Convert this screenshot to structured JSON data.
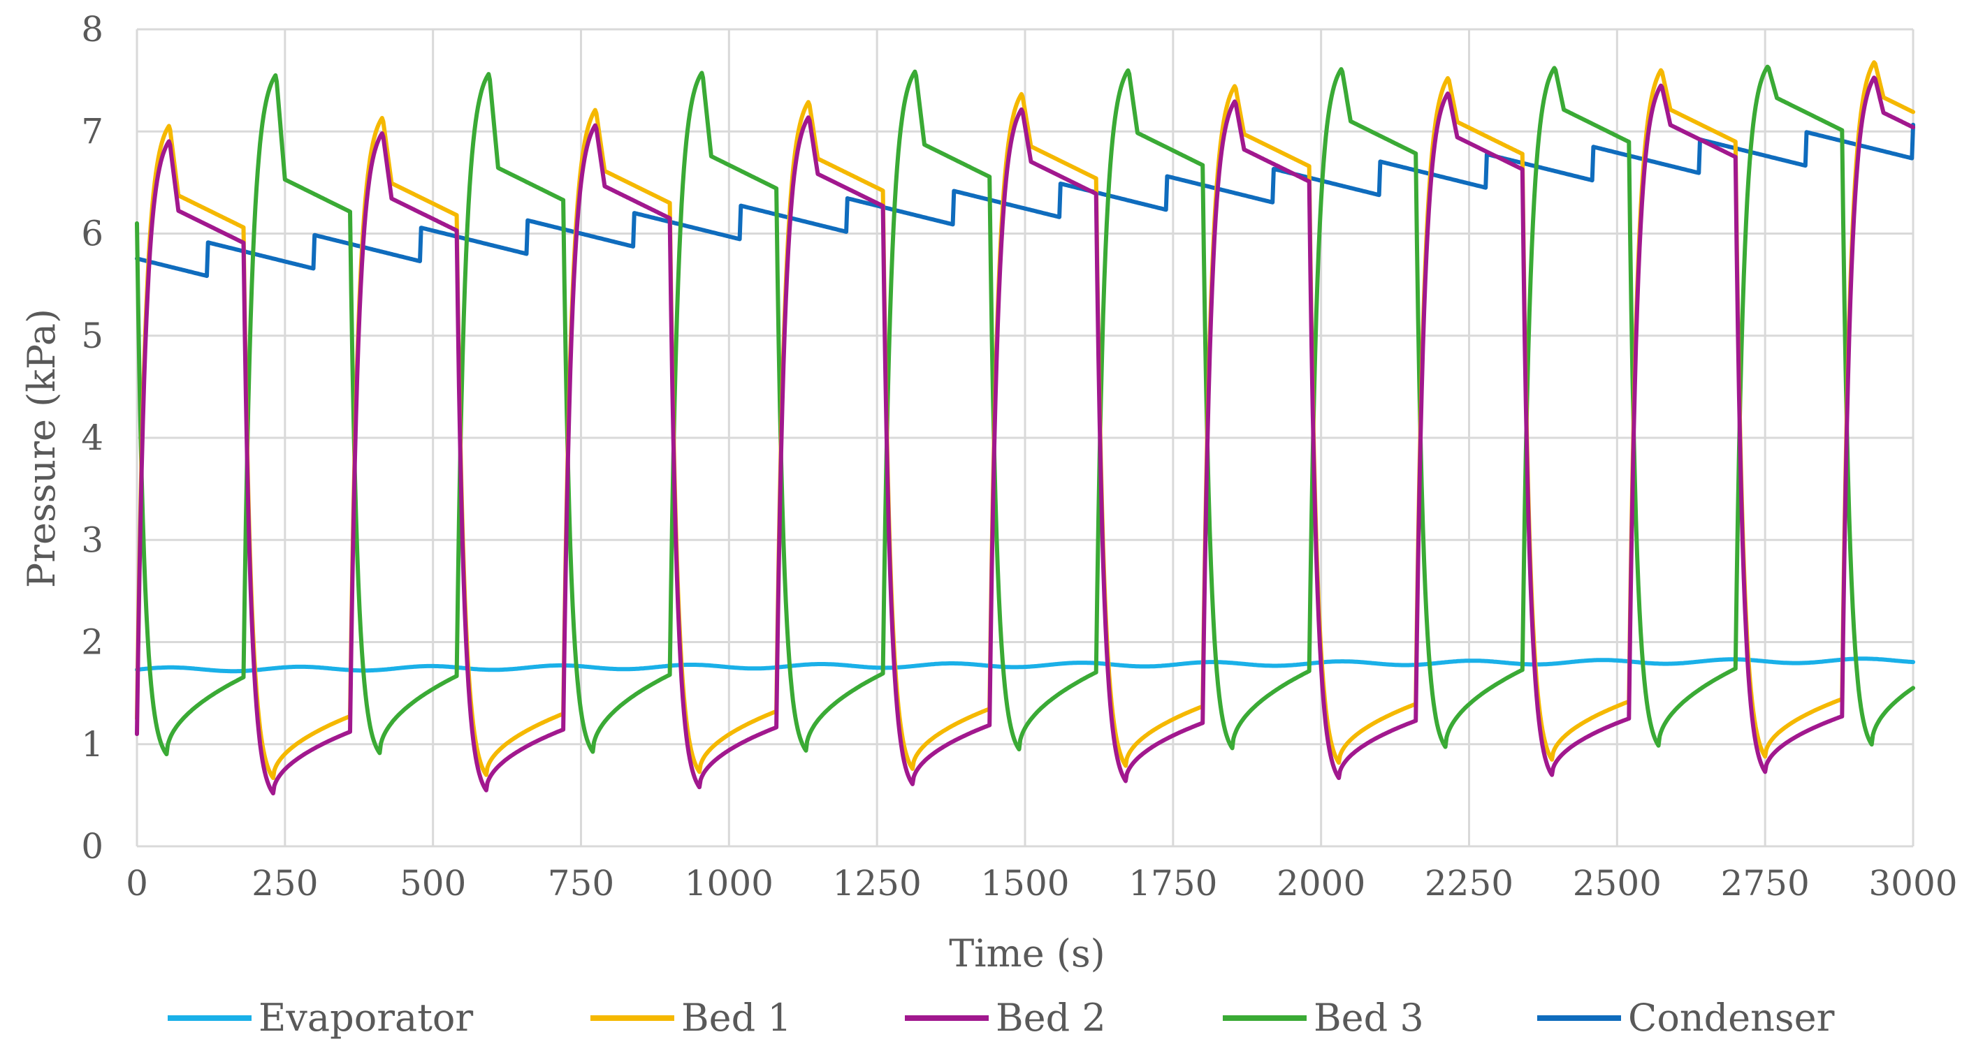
{
  "chart_data": {
    "type": "line",
    "title": "",
    "xlabel": "Time  (s)",
    "ylabel": "Pressure  (kPa)",
    "xlim": [
      0,
      3000
    ],
    "ylim": [
      0,
      8
    ],
    "xticks": [
      0,
      250,
      500,
      750,
      1000,
      1250,
      1500,
      1750,
      2000,
      2250,
      2500,
      2750,
      3000
    ],
    "yticks": [
      0,
      1,
      2,
      3,
      4,
      5,
      6,
      7,
      8
    ],
    "grid": true,
    "legend_position": "bottom",
    "cycle_period_s": 360,
    "series": [
      {
        "name": "Evaporator",
        "color": "#1ab0e8",
        "pattern": "flat",
        "value_start": 1.73,
        "value_end": 1.82,
        "notes": "nearly constant, slow rise"
      },
      {
        "name": "Bed 1",
        "color": "#f5b800",
        "pattern": "bed",
        "phase_s": 0,
        "desorb_peak_start": 7.05,
        "desorb_peak_end": 7.7,
        "desorb_plateau_start": 6.0,
        "desorb_plateau_end": 7.0,
        "adsorb_min_start": 0.65,
        "adsorb_min_end": 0.9,
        "adsorb_end_start": 1.25,
        "adsorb_end_end": 1.45
      },
      {
        "name": "Bed 2",
        "color": "#a1188e",
        "pattern": "bed",
        "phase_s": 0,
        "desorb_peak_start": 6.9,
        "desorb_peak_end": 7.55,
        "desorb_plateau_start": 5.85,
        "desorb_plateau_end": 6.85,
        "adsorb_min_start": 0.5,
        "adsorb_min_end": 0.75,
        "adsorb_end_start": 1.1,
        "adsorb_end_end": 1.28
      },
      {
        "name": "Bed 3",
        "color": "#3aaa35",
        "pattern": "bed",
        "phase_s": -180,
        "desorb_peak_start": 7.55,
        "desorb_peak_end": 7.65,
        "desorb_plateau_start": 6.1,
        "desorb_plateau_end": 7.05,
        "adsorb_min_start": 0.9,
        "adsorb_min_end": 1.0,
        "adsorb_end_start": 1.65,
        "adsorb_end_end": 1.75
      },
      {
        "name": "Condenser",
        "color": "#0f6cbd",
        "pattern": "condenser",
        "value_start": 5.7,
        "value_end": 6.9,
        "jump": 0.55
      }
    ]
  }
}
